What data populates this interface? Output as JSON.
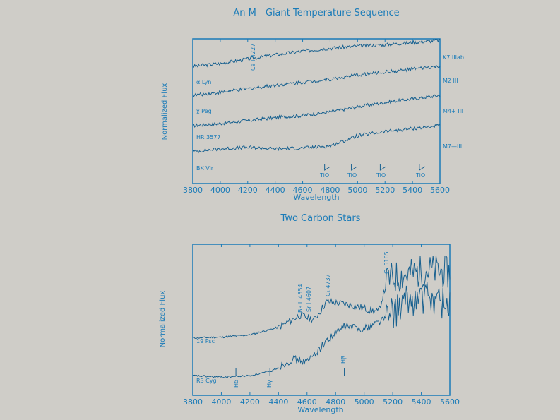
{
  "chart_data": [
    {
      "type": "line",
      "title": "An M—Giant Temperature Sequence",
      "xlabel": "Wavelength",
      "ylabel": "Normalized Flux",
      "xlim": [
        3800,
        5600
      ],
      "x_ticks": [
        3800,
        4000,
        4200,
        4400,
        4600,
        4800,
        5000,
        5200,
        5400,
        5600
      ],
      "x_tick_labels": [
        "3800",
        "4000",
        "4200",
        "4400",
        "4600",
        "4800",
        "5000",
        "5200",
        "5400",
        "5600"
      ],
      "ylim": [
        0,
        10
      ],
      "grid": false,
      "series": [
        {
          "name": "α Lyn",
          "spectral_type": "K7 IIIab",
          "x": [
            3800,
            4000,
            4200,
            4400,
            4600,
            4800,
            5000,
            5200,
            5400,
            5600
          ],
          "values": [
            8.1,
            8.3,
            8.6,
            8.9,
            9.15,
            9.35,
            9.5,
            9.6,
            9.75,
            9.9
          ]
        },
        {
          "name": "χ Peg",
          "spectral_type": "M2 III",
          "x": [
            3800,
            4000,
            4200,
            4400,
            4600,
            4800,
            5000,
            5200,
            5400,
            5600
          ],
          "values": [
            6.1,
            6.3,
            6.55,
            6.8,
            7.0,
            7.2,
            7.5,
            7.7,
            7.9,
            8.1
          ]
        },
        {
          "name": "HR 3577",
          "spectral_type": "M4+ III",
          "x": [
            3800,
            4000,
            4200,
            4400,
            4600,
            4800,
            5000,
            5200,
            5400,
            5600
          ],
          "values": [
            4.0,
            4.15,
            4.35,
            4.55,
            4.7,
            4.95,
            5.3,
            5.6,
            5.85,
            6.1
          ]
        },
        {
          "name": "BK Vir",
          "spectral_type": "M7—III",
          "x": [
            3800,
            4000,
            4200,
            4400,
            4600,
            4800,
            5000,
            5200,
            5400,
            5600
          ],
          "values": [
            2.2,
            2.4,
            2.5,
            2.4,
            2.45,
            2.6,
            3.3,
            3.6,
            3.8,
            4.0
          ]
        }
      ],
      "annotations": [
        {
          "text": "Ca I 4227",
          "x": 4227
        },
        {
          "text": "TiO",
          "x": 4760
        },
        {
          "text": "TiO",
          "x": 4955
        },
        {
          "text": "TiO",
          "x": 5165
        },
        {
          "text": "TiO",
          "x": 5450
        }
      ]
    },
    {
      "type": "line",
      "title": "Two Carbon Stars",
      "xlabel": "Wavelength",
      "ylabel": "Normalized Flux",
      "xlim": [
        3800,
        5600
      ],
      "x_ticks": [
        3800,
        4000,
        4200,
        4400,
        4600,
        4800,
        5000,
        5200,
        5400,
        5600
      ],
      "x_tick_labels": [
        "3800",
        "4000",
        "4200",
        "4400",
        "4600",
        "4800",
        "5000",
        "5200",
        "5400",
        "5600"
      ],
      "ylim": [
        0,
        10
      ],
      "grid": false,
      "series": [
        {
          "name": "19 Psc",
          "x": [
            3800,
            4000,
            4200,
            4400,
            4550,
            4650,
            4737,
            4900,
            5100,
            5165,
            5300,
            5450,
            5600
          ],
          "values": [
            3.8,
            3.85,
            4.0,
            4.5,
            5.3,
            5.0,
            6.2,
            6.0,
            5.5,
            7.7,
            8.0,
            8.3,
            8.1
          ]
        },
        {
          "name": "RS Cyg",
          "x": [
            3800,
            4000,
            4200,
            4350,
            4500,
            4600,
            4737,
            4861,
            5000,
            5165,
            5300,
            5450,
            5600
          ],
          "values": [
            1.3,
            1.2,
            1.3,
            1.6,
            2.4,
            2.2,
            3.6,
            4.6,
            4.4,
            5.2,
            6.2,
            6.5,
            6.0
          ]
        }
      ],
      "annotations": [
        {
          "text": "Ba II 4554",
          "x": 4554
        },
        {
          "text": "Sr I 4607",
          "x": 4607
        },
        {
          "text": "C₂ 4737",
          "x": 4737
        },
        {
          "text": "C₂ 5165",
          "x": 5165
        },
        {
          "text": "Hβ",
          "x": 4861
        },
        {
          "text": "Hδ",
          "x": 4102
        },
        {
          "text": "Hγ",
          "x": 4340
        }
      ]
    }
  ],
  "colors": {
    "background": "#cfcdc8",
    "axis": "#1a7bb8",
    "line": "#17608f",
    "text": "#1a7bb8"
  }
}
